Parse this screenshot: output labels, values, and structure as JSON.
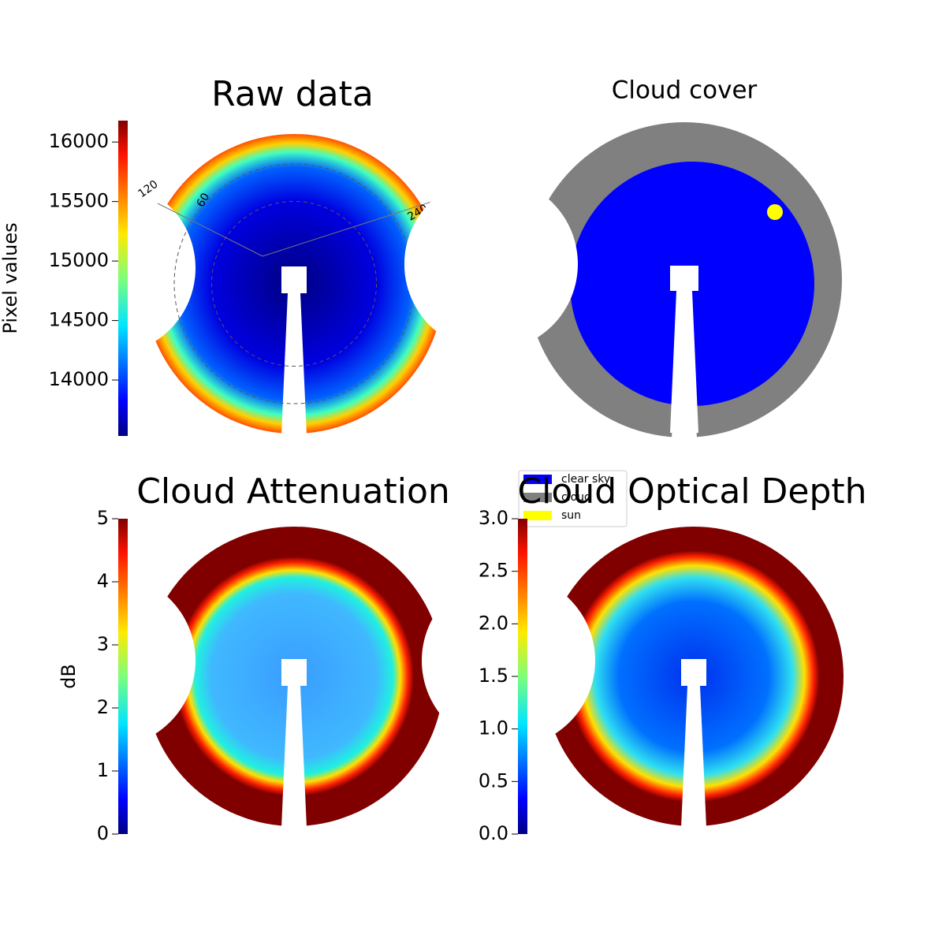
{
  "chart_data": [
    {
      "type": "image",
      "title": "Raw data",
      "ylabel": "Pixel values",
      "ylim": [
        13530,
        16180
      ],
      "yticks": [
        14000,
        14500,
        15000,
        15500,
        16000
      ],
      "annotations": [
        "120",
        "60",
        "240"
      ]
    },
    {
      "type": "image",
      "title": "Cloud cover",
      "legend": [
        {
          "name": "clear sky",
          "color": "#0000ff"
        },
        {
          "name": "cloud",
          "color": "#808080"
        },
        {
          "name": "sun",
          "color": "#ffff00"
        }
      ]
    },
    {
      "type": "image",
      "title": "Cloud Attenuation",
      "ylabel": "dB",
      "ylim": [
        0,
        5
      ],
      "yticks": [
        0,
        1,
        2,
        3,
        4,
        5
      ]
    },
    {
      "type": "image",
      "title": "Cloud Optical Depth",
      "ylim": [
        0,
        3
      ],
      "yticks": [
        {
          "value": 0,
          "label": "0.0"
        },
        0.5,
        {
          "value": 1,
          "label": "1.0"
        },
        1.5,
        {
          "value": 2,
          "label": "2.0"
        },
        2.5,
        {
          "value": 3,
          "label": "3.0"
        }
      ]
    }
  ]
}
